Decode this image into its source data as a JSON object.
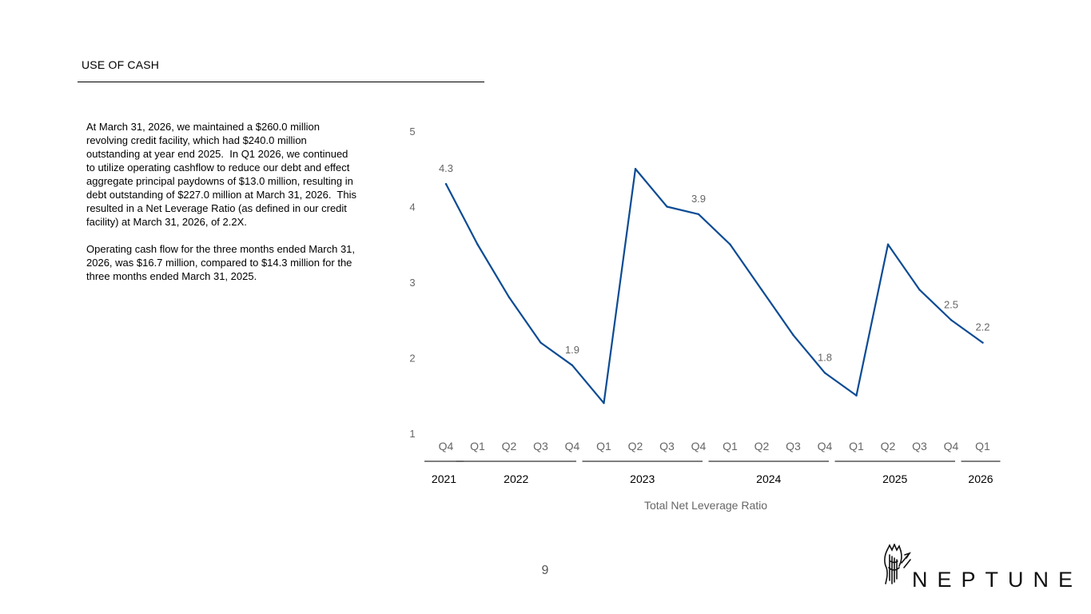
{
  "slide": {
    "title": "USE OF CASH",
    "paragraphs": [
      "At March 31, 2026, we maintained a $260.0 million revolving credit facility, which had $240.0 million outstanding at year end 2025.  In Q1 2026, we continued to utilize operating cashflow to reduce our debt and effect  aggregate principal paydowns of $13.0 million, resulting in debt outstanding of $227.0 million at March 31, 2026.  This resulted in a Net Leverage Ratio (as defined in our credit facility) at March 31, 2026, of 2.2X.",
      "Operating cash flow for the three months ended March 31, 2026, was $16.7 million, compared to $14.3 million for the three months ended March 31, 2025."
    ],
    "page_number": "9",
    "brand": "NEPTUNE",
    "logo_icon": "neptune-trident-head-icon"
  },
  "chart_data": {
    "type": "line",
    "title": "",
    "xlabel": "Total Net Leverage Ratio",
    "ylabel": "",
    "ylim": [
      1,
      5
    ],
    "yticks": [
      "1",
      "2",
      "3",
      "4",
      "5"
    ],
    "grid": false,
    "legend": "none",
    "categories": [
      "Q4",
      "Q1",
      "Q2",
      "Q3",
      "Q4",
      "Q1",
      "Q2",
      "Q3",
      "Q4",
      "Q1",
      "Q2",
      "Q3",
      "Q4",
      "Q1",
      "Q2",
      "Q3",
      "Q4",
      "Q1"
    ],
    "year_groups": [
      {
        "label": "2021",
        "start": 0,
        "end": 0
      },
      {
        "label": "2022",
        "start": 1,
        "end": 4
      },
      {
        "label": "2023",
        "start": 5,
        "end": 8
      },
      {
        "label": "2024",
        "start": 9,
        "end": 12
      },
      {
        "label": "2025",
        "start": 13,
        "end": 16
      },
      {
        "label": "2026",
        "start": 17,
        "end": 17
      }
    ],
    "series": [
      {
        "values": [
          4.3,
          3.5,
          2.8,
          2.2,
          1.9,
          1.4,
          4.5,
          4.0,
          3.9,
          3.5,
          2.9,
          2.3,
          1.8,
          1.5,
          3.5,
          2.9,
          2.5,
          2.2
        ],
        "color": "#0b4b94"
      }
    ],
    "data_labels": [
      {
        "index": 0,
        "text": "4.3"
      },
      {
        "index": 4,
        "text": "1.9"
      },
      {
        "index": 8,
        "text": "3.9"
      },
      {
        "index": 12,
        "text": "1.8"
      },
      {
        "index": 16,
        "text": "2.5"
      },
      {
        "index": 17,
        "text": "2.2"
      }
    ],
    "colors": {
      "axis_text": "#666666",
      "group_rule": "#333333"
    }
  }
}
